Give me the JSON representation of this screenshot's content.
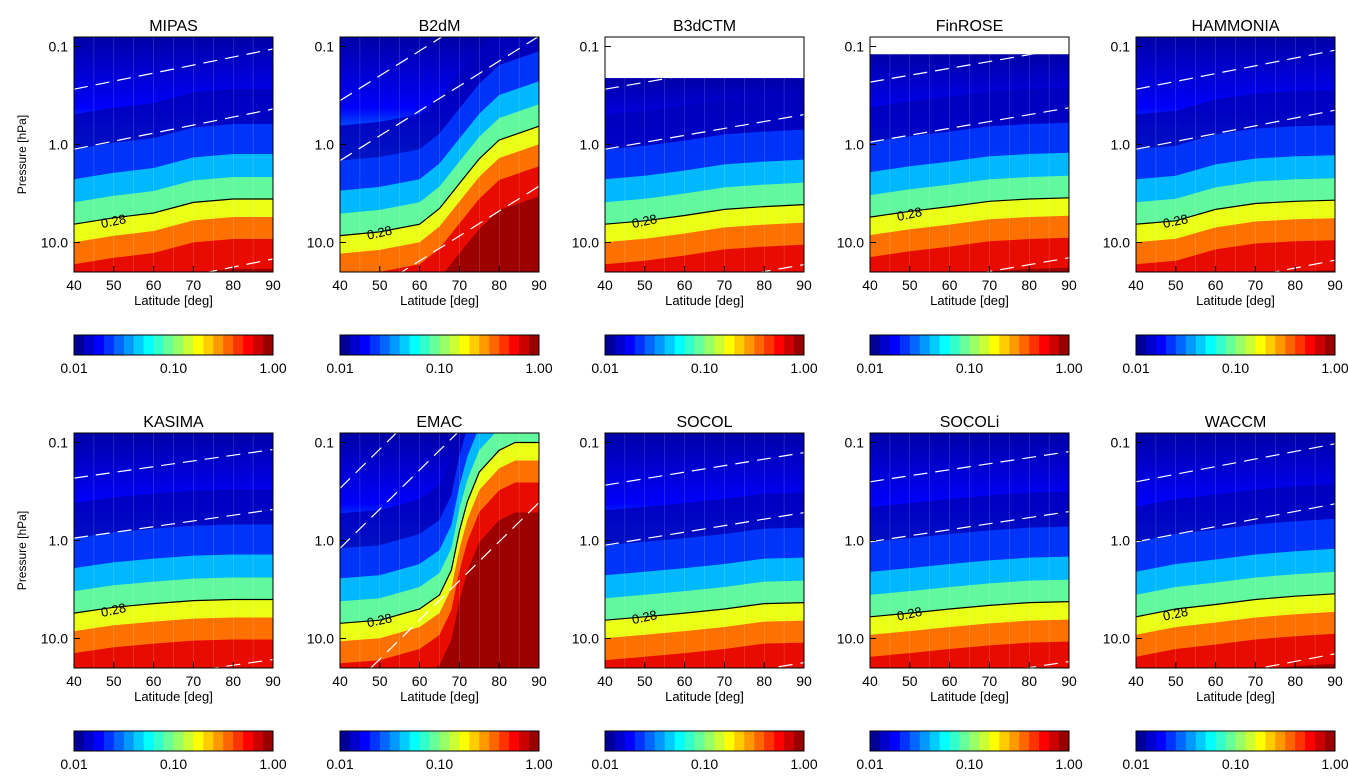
{
  "figure": {
    "contour_label": "0.28",
    "y_axis_title": "Pressure [hPa]",
    "x_axis_title": "Latitude [deg]",
    "x_ticks": [
      "40",
      "50",
      "60",
      "70",
      "80",
      "90"
    ],
    "y_ticks": [
      "0.1",
      "1.0",
      "10.0"
    ],
    "colorbar_ticks": [
      "0.01",
      "0.10",
      "1.00"
    ]
  },
  "chart_data": [
    {
      "type": "heatmap",
      "title": "MIPAS",
      "xlabel": "Latitude [deg]",
      "ylabel": "Pressure [hPa]",
      "xlim": [
        40,
        90
      ],
      "ylim": [
        0.08,
        20
      ],
      "y_scale": "log",
      "y_inverted": true,
      "colorbar_range": [
        0.01,
        1.0
      ],
      "colorbar_ticks": [
        0.01,
        0.1,
        1.0
      ],
      "contour_028_pressure": {
        "x": [
          40,
          50,
          60,
          70,
          80,
          90
        ],
        "y": [
          6.5,
          5.6,
          5.0,
          3.9,
          3.6,
          3.6
        ]
      }
    },
    {
      "type": "heatmap",
      "title": "B2dM",
      "xlabel": "Latitude [deg]",
      "ylabel": "",
      "xlim": [
        40,
        90
      ],
      "ylim": [
        0.08,
        20
      ],
      "y_scale": "log",
      "y_inverted": true,
      "colorbar_range": [
        0.01,
        1.0
      ],
      "colorbar_ticks": [
        0.01,
        0.1,
        1.0
      ],
      "contour_028_pressure": {
        "x": [
          40,
          50,
          60,
          65,
          70,
          75,
          80,
          90
        ],
        "y": [
          8.5,
          7.8,
          6.5,
          4.5,
          2.5,
          1.4,
          0.9,
          0.65
        ]
      }
    },
    {
      "type": "heatmap",
      "title": "B3dCTM",
      "xlabel": "Latitude [deg]",
      "ylabel": "",
      "xlim": [
        40,
        90
      ],
      "ylim": [
        0.08,
        20
      ],
      "y_scale": "log",
      "y_inverted": true,
      "colorbar_range": [
        0.01,
        1.0
      ],
      "colorbar_ticks": [
        0.01,
        0.1,
        1.0
      ],
      "data_top_pressure": 0.21,
      "contour_028_pressure": {
        "x": [
          40,
          50,
          60,
          70,
          80,
          90
        ],
        "y": [
          6.5,
          6.0,
          5.3,
          4.6,
          4.3,
          4.1
        ]
      }
    },
    {
      "type": "heatmap",
      "title": "FinROSE",
      "xlabel": "Latitude [deg]",
      "ylabel": "",
      "xlim": [
        40,
        90
      ],
      "ylim": [
        0.08,
        20
      ],
      "y_scale": "log",
      "y_inverted": true,
      "colorbar_range": [
        0.01,
        1.0
      ],
      "colorbar_ticks": [
        0.01,
        0.1,
        1.0
      ],
      "data_top_pressure": 0.12,
      "contour_028_pressure": {
        "x": [
          40,
          50,
          60,
          70,
          80,
          90
        ],
        "y": [
          5.5,
          4.8,
          4.3,
          3.8,
          3.6,
          3.5
        ]
      }
    },
    {
      "type": "heatmap",
      "title": "HAMMONIA",
      "xlabel": "Latitude [deg]",
      "ylabel": "",
      "xlim": [
        40,
        90
      ],
      "ylim": [
        0.08,
        20
      ],
      "y_scale": "log",
      "y_inverted": true,
      "colorbar_range": [
        0.01,
        1.0
      ],
      "colorbar_ticks": [
        0.01,
        0.1,
        1.0
      ],
      "contour_028_pressure": {
        "x": [
          40,
          50,
          60,
          70,
          80,
          90
        ],
        "y": [
          6.5,
          6.0,
          4.6,
          4.0,
          3.8,
          3.7
        ]
      }
    },
    {
      "type": "heatmap",
      "title": "KASIMA",
      "xlabel": "Latitude [deg]",
      "ylabel": "Pressure [hPa]",
      "xlim": [
        40,
        90
      ],
      "ylim": [
        0.08,
        20
      ],
      "y_scale": "log",
      "y_inverted": true,
      "colorbar_range": [
        0.01,
        1.0
      ],
      "colorbar_ticks": [
        0.01,
        0.1,
        1.0
      ],
      "contour_028_pressure": {
        "x": [
          40,
          50,
          60,
          70,
          80,
          90
        ],
        "y": [
          5.5,
          4.8,
          4.4,
          4.1,
          4.0,
          4.0
        ]
      }
    },
    {
      "type": "heatmap",
      "title": "EMAC",
      "xlabel": "Latitude [deg]",
      "ylabel": "",
      "xlim": [
        40,
        90
      ],
      "ylim": [
        0.08,
        20
      ],
      "y_scale": "log",
      "y_inverted": true,
      "colorbar_range": [
        0.01,
        1.0
      ],
      "colorbar_ticks": [
        0.01,
        0.1,
        1.0
      ],
      "contour_028_pressure": {
        "x": [
          40,
          50,
          60,
          65,
          68,
          70,
          72,
          75,
          80,
          84,
          90
        ],
        "y": [
          7.0,
          6.5,
          5.0,
          3.6,
          2.0,
          0.8,
          0.4,
          0.2,
          0.12,
          0.1,
          0.1
        ]
      }
    },
    {
      "type": "heatmap",
      "title": "SOCOL",
      "xlabel": "Latitude [deg]",
      "ylabel": "",
      "xlim": [
        40,
        90
      ],
      "ylim": [
        0.08,
        20
      ],
      "y_scale": "log",
      "y_inverted": true,
      "colorbar_range": [
        0.01,
        1.0
      ],
      "colorbar_ticks": [
        0.01,
        0.1,
        1.0
      ],
      "contour_028_pressure": {
        "x": [
          40,
          50,
          60,
          70,
          80,
          90
        ],
        "y": [
          6.5,
          6.0,
          5.5,
          5.0,
          4.4,
          4.3
        ]
      }
    },
    {
      "type": "heatmap",
      "title": "SOCOLi",
      "xlabel": "Latitude [deg]",
      "ylabel": "",
      "xlim": [
        40,
        90
      ],
      "ylim": [
        0.08,
        20
      ],
      "y_scale": "log",
      "y_inverted": true,
      "colorbar_range": [
        0.01,
        1.0
      ],
      "colorbar_ticks": [
        0.01,
        0.1,
        1.0
      ],
      "contour_028_pressure": {
        "x": [
          40,
          50,
          60,
          70,
          80,
          90
        ],
        "y": [
          6.0,
          5.5,
          5.0,
          4.6,
          4.3,
          4.2
        ]
      }
    },
    {
      "type": "heatmap",
      "title": "WACCM",
      "xlabel": "Latitude [deg]",
      "ylabel": "",
      "xlim": [
        40,
        90
      ],
      "ylim": [
        0.08,
        20
      ],
      "y_scale": "log",
      "y_inverted": true,
      "colorbar_range": [
        0.01,
        1.0
      ],
      "colorbar_ticks": [
        0.01,
        0.1,
        1.0
      ],
      "contour_028_pressure": {
        "x": [
          40,
          50,
          60,
          70,
          80,
          90
        ],
        "y": [
          6.0,
          5.0,
          4.5,
          4.0,
          3.7,
          3.5
        ]
      }
    }
  ]
}
